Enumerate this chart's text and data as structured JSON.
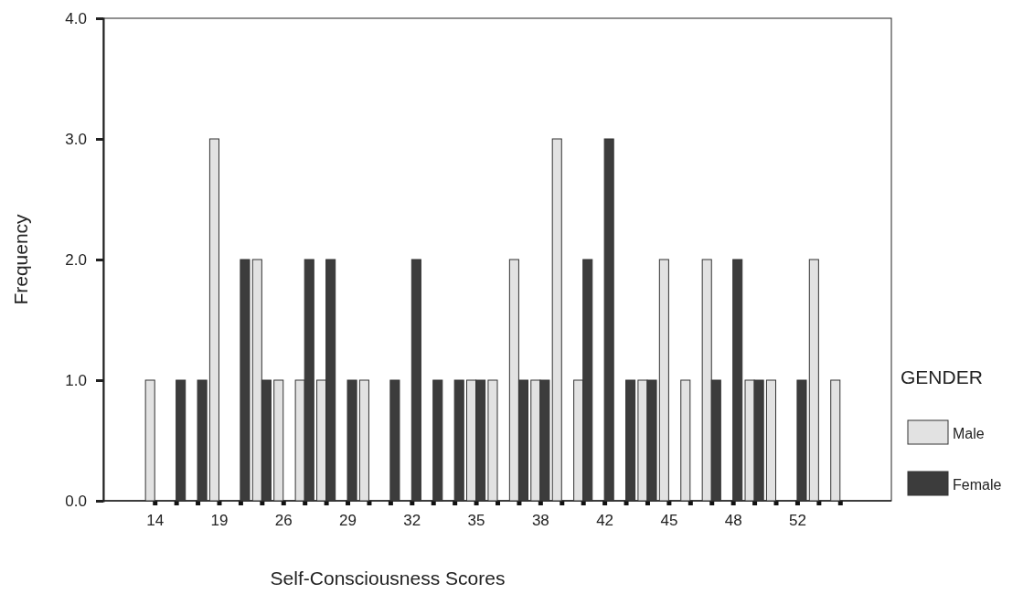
{
  "chart_data": {
    "type": "bar",
    "xlabel": "Self-Consciousness Scores",
    "ylabel": "Frequency",
    "legend_title": "GENDER",
    "legend": "right",
    "categories": [
      "14",
      null,
      null,
      "19",
      null,
      null,
      "26",
      null,
      null,
      "29",
      null,
      null,
      "32",
      null,
      null,
      "35",
      null,
      null,
      "38",
      null,
      null,
      "42",
      null,
      null,
      "45",
      null,
      null,
      "48",
      null,
      null,
      "52",
      null,
      null
    ],
    "series": [
      {
        "name": "Male",
        "color": "#e2e2e2",
        "values": [
          1,
          null,
          null,
          3,
          null,
          2,
          1,
          1,
          1,
          null,
          1,
          null,
          null,
          null,
          null,
          1,
          1,
          2,
          1,
          3,
          1,
          null,
          null,
          1,
          2,
          1,
          2,
          null,
          1,
          1,
          null,
          2,
          1
        ]
      },
      {
        "name": "Female",
        "color": "#3c3c3c",
        "values": [
          null,
          1,
          1,
          null,
          2,
          1,
          null,
          2,
          2,
          1,
          null,
          1,
          2,
          1,
          1,
          1,
          null,
          1,
          1,
          null,
          2,
          3,
          1,
          1,
          null,
          null,
          1,
          2,
          1,
          null,
          1,
          null,
          null
        ]
      }
    ],
    "ylim": [
      0,
      4
    ],
    "yticks": [
      {
        "value": 0,
        "label": "0.0"
      },
      {
        "value": 1,
        "label": "1.0"
      },
      {
        "value": 2,
        "label": "2.0"
      },
      {
        "value": 3,
        "label": "3.0"
      },
      {
        "value": 4,
        "label": "4.0"
      }
    ],
    "grid": false
  }
}
